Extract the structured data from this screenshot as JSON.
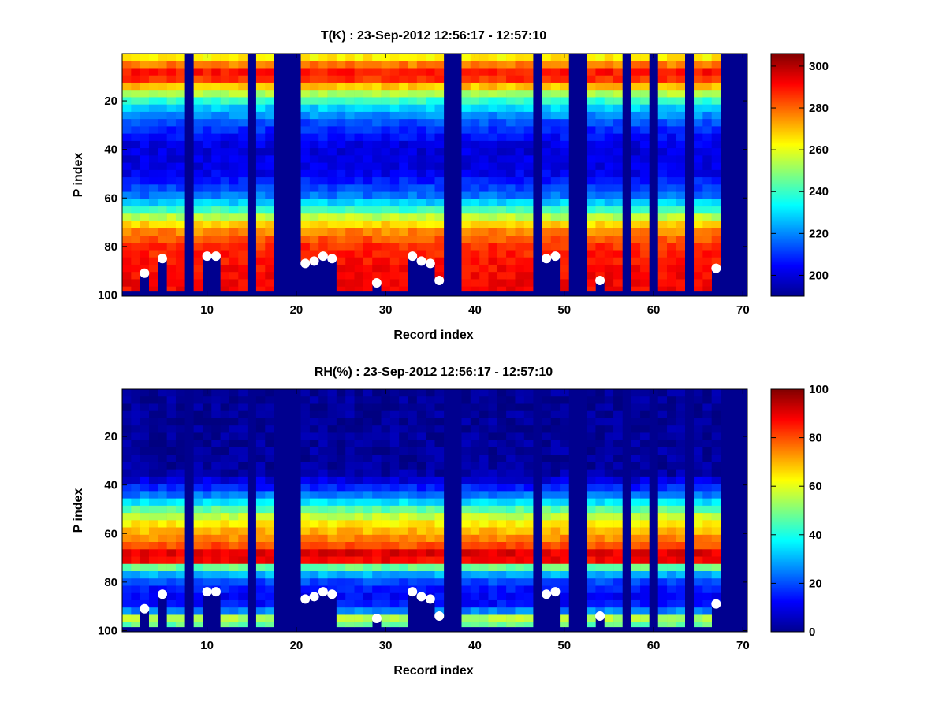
{
  "chart_data": [
    {
      "type": "heatmap",
      "title": "T(K) : 23-Sep-2012 12:56:17 - 12:57:10",
      "xlabel": "Record index",
      "ylabel": "P index",
      "xlim": [
        0.5,
        70.5
      ],
      "ylim": [
        0.5,
        100.5
      ],
      "y_reversed": true,
      "xticks": [
        "10",
        "20",
        "30",
        "40",
        "50",
        "60",
        "70"
      ],
      "yticks": [
        "20",
        "40",
        "60",
        "80",
        "100"
      ],
      "colormap": "jet",
      "colorbar": {
        "range": [
          190,
          306
        ],
        "ticks": [
          "200",
          "220",
          "240",
          "260",
          "280",
          "300"
        ]
      },
      "records": 69,
      "missing_records": [
        8,
        15,
        18,
        19,
        20,
        37,
        38,
        47,
        51,
        52,
        57,
        60,
        64,
        68,
        69
      ],
      "surface_pressure_index": [
        {
          "x": 3,
          "y": 91
        },
        {
          "x": 5,
          "y": 85
        },
        {
          "x": 10,
          "y": 84
        },
        {
          "x": 11,
          "y": 84
        },
        {
          "x": 21,
          "y": 87
        },
        {
          "x": 22,
          "y": 86
        },
        {
          "x": 23,
          "y": 84
        },
        {
          "x": 24,
          "y": 85
        },
        {
          "x": 29,
          "y": 95
        },
        {
          "x": 33,
          "y": 84
        },
        {
          "x": 34,
          "y": 86
        },
        {
          "x": 35,
          "y": 87
        },
        {
          "x": 36,
          "y": 94
        },
        {
          "x": 48,
          "y": 85
        },
        {
          "x": 49,
          "y": 84
        },
        {
          "x": 54,
          "y": 94
        },
        {
          "x": 67,
          "y": 89
        }
      ],
      "profile_levels": [
        1,
        4,
        8,
        12,
        16,
        22,
        30,
        40,
        50,
        60,
        65,
        70,
        75,
        80,
        85,
        90,
        95,
        99
      ],
      "profile_values": [
        258,
        270,
        290,
        285,
        260,
        232,
        212,
        200,
        202,
        218,
        238,
        262,
        278,
        286,
        289,
        291,
        292,
        292
      ]
    },
    {
      "type": "heatmap",
      "title": "RH(%) : 23-Sep-2012 12:56:17 - 12:57:10",
      "xlabel": "Record index",
      "ylabel": "P index",
      "xlim": [
        0.5,
        70.5
      ],
      "ylim": [
        0.5,
        100.5
      ],
      "y_reversed": true,
      "xticks": [
        "10",
        "20",
        "30",
        "40",
        "50",
        "60",
        "70"
      ],
      "yticks": [
        "20",
        "40",
        "60",
        "80",
        "100"
      ],
      "colormap": "jet",
      "colorbar": {
        "range": [
          0,
          100
        ],
        "ticks": [
          "0",
          "20",
          "40",
          "60",
          "80",
          "100"
        ]
      },
      "records": 69,
      "missing_records": [
        8,
        15,
        18,
        19,
        20,
        37,
        38,
        47,
        51,
        52,
        57,
        60,
        64,
        68,
        69
      ],
      "surface_pressure_index": [
        {
          "x": 3,
          "y": 91
        },
        {
          "x": 5,
          "y": 85
        },
        {
          "x": 10,
          "y": 84
        },
        {
          "x": 11,
          "y": 84
        },
        {
          "x": 21,
          "y": 87
        },
        {
          "x": 22,
          "y": 86
        },
        {
          "x": 23,
          "y": 84
        },
        {
          "x": 24,
          "y": 85
        },
        {
          "x": 29,
          "y": 95
        },
        {
          "x": 33,
          "y": 84
        },
        {
          "x": 34,
          "y": 86
        },
        {
          "x": 35,
          "y": 87
        },
        {
          "x": 36,
          "y": 94
        },
        {
          "x": 48,
          "y": 85
        },
        {
          "x": 49,
          "y": 84
        },
        {
          "x": 54,
          "y": 94
        },
        {
          "x": 67,
          "y": 89
        }
      ],
      "profile_levels": [
        1,
        35,
        40,
        45,
        50,
        55,
        60,
        65,
        68,
        70,
        72,
        75,
        80,
        85,
        90,
        93,
        96,
        99
      ],
      "profile_values": [
        2,
        3,
        12,
        25,
        45,
        62,
        70,
        78,
        88,
        96,
        85,
        40,
        20,
        12,
        14,
        28,
        60,
        45
      ]
    }
  ]
}
